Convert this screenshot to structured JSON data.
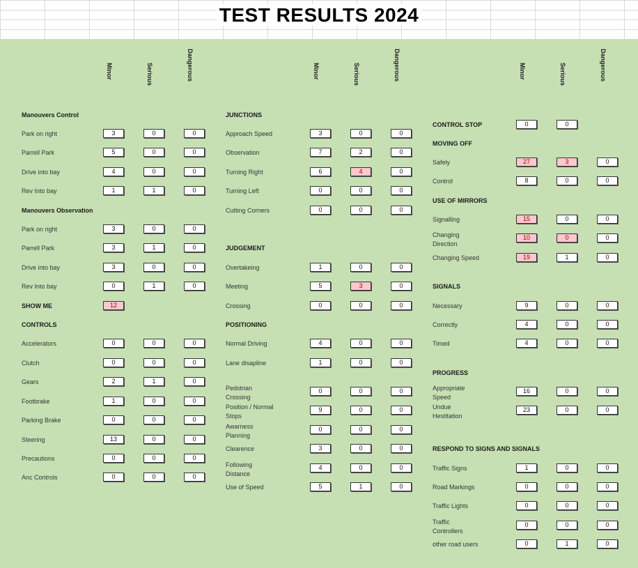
{
  "title": "TEST RESULTS 2024",
  "column_headers": [
    "Minor",
    "Serious",
    "Dangerous"
  ],
  "sections": [
    {
      "heading": "Manouvers Control",
      "rows": [
        {
          "label": "Park on right",
          "values": [
            "3",
            "0",
            "0"
          ]
        },
        {
          "label": "Parrell Park",
          "values": [
            "5",
            "0",
            "0"
          ]
        },
        {
          "label": "Drive into bay",
          "values": [
            "4",
            "0",
            "0"
          ]
        },
        {
          "label": "Rev Into bay",
          "values": [
            "1",
            "1",
            "0"
          ]
        }
      ]
    },
    {
      "heading": "Manouvers Observation",
      "rows": [
        {
          "label": "Park on right",
          "values": [
            "3",
            "0",
            "0"
          ]
        },
        {
          "label": "Parrell Park",
          "values": [
            "3",
            "1",
            "0"
          ]
        },
        {
          "label": "Drive into bay",
          "values": [
            "3",
            "0",
            "0"
          ]
        },
        {
          "label": "Rev Into bay",
          "values": [
            "0",
            "1",
            "0"
          ]
        }
      ]
    },
    {
      "heading": "SHOW ME",
      "rows": [
        {
          "label": "",
          "values": [
            "12"
          ]
        }
      ]
    },
    {
      "heading": "CONTROLS",
      "rows": [
        {
          "label": "Accelerators",
          "values": [
            "0",
            "0",
            "0"
          ]
        },
        {
          "label": "Clutch",
          "values": [
            "0",
            "0",
            "0"
          ]
        },
        {
          "label": "Gears",
          "values": [
            "2",
            "1",
            "0"
          ]
        },
        {
          "label": "Footbrake",
          "values": [
            "1",
            "0",
            "0"
          ]
        },
        {
          "label": "Parking Brake",
          "values": [
            "0",
            "0",
            "0"
          ]
        },
        {
          "label": "Steering",
          "values": [
            "13",
            "0",
            "0"
          ]
        },
        {
          "label": "Precautions",
          "values": [
            "0",
            "0",
            "0"
          ]
        },
        {
          "label": "Anc Controls",
          "values": [
            "0",
            "0",
            "0"
          ]
        }
      ]
    },
    {
      "heading": "JUNCTIONS",
      "rows": [
        {
          "label": "Approach Speed",
          "values": [
            "3",
            "0",
            "0"
          ]
        },
        {
          "label": "Observation",
          "values": [
            "7",
            "2",
            "0"
          ]
        },
        {
          "label": "Turning Right",
          "values": [
            "6",
            "4",
            "0"
          ]
        },
        {
          "label": "Turning Left",
          "values": [
            "0",
            "0",
            "0"
          ]
        },
        {
          "label": "Cutting Corners",
          "values": [
            "0",
            "0",
            "0"
          ]
        }
      ]
    },
    {
      "heading": "JUDGEMENT",
      "rows": [
        {
          "label": "Overtakeing",
          "values": [
            "1",
            "0",
            "0"
          ]
        },
        {
          "label": "Meeting",
          "values": [
            "5",
            "3",
            "0"
          ]
        },
        {
          "label": "Crossing",
          "values": [
            "0",
            "0",
            "0"
          ]
        }
      ]
    },
    {
      "heading": "POSITIONING",
      "rows": [
        {
          "label": "Normal Driving",
          "values": [
            "4",
            "0",
            "0"
          ]
        },
        {
          "label": "Lane disapline",
          "values": [
            "1",
            "0",
            "0"
          ]
        },
        {
          "label": "Pedstrian Crossing",
          "values": [
            "0",
            "0",
            "0"
          ]
        },
        {
          "label": "Position / Normal Stops",
          "values": [
            "9",
            "0",
            "0"
          ]
        },
        {
          "label": "Awarness Planning",
          "values": [
            "0",
            "0",
            "0"
          ]
        },
        {
          "label": "Clearence",
          "values": [
            "3",
            "0",
            "0"
          ]
        },
        {
          "label": "Following Distance",
          "values": [
            "4",
            "0",
            "0"
          ]
        },
        {
          "label": "Use of Speed",
          "values": [
            "5",
            "1",
            "0"
          ]
        }
      ]
    },
    {
      "heading": "CONTROL STOP",
      "rows": [
        {
          "label": "",
          "values": [
            "0",
            "0"
          ]
        }
      ]
    },
    {
      "heading": "MOVING OFF",
      "rows": [
        {
          "label": "Safely",
          "values": [
            "27",
            "3",
            "0"
          ]
        },
        {
          "label": "Control",
          "values": [
            "8",
            "0",
            "0"
          ]
        }
      ]
    },
    {
      "heading": "USE OF MIRRORS",
      "rows": [
        {
          "label": "Signalling",
          "values": [
            "15",
            "0",
            "0"
          ]
        },
        {
          "label": "Changing Direction",
          "values": [
            "10",
            "0",
            "0"
          ]
        },
        {
          "label": "Changing Speed",
          "values": [
            "19",
            "1",
            "0"
          ]
        }
      ]
    },
    {
      "heading": "SIGNALS",
      "rows": [
        {
          "label": "Necessary",
          "values": [
            "9",
            "0",
            "0"
          ]
        },
        {
          "label": "Correctly",
          "values": [
            "4",
            "0",
            "0"
          ]
        },
        {
          "label": "Timed",
          "values": [
            "4",
            "0",
            "0"
          ]
        }
      ]
    },
    {
      "heading": "PROGRESS",
      "rows": [
        {
          "label": "Appropriate Speed",
          "values": [
            "16",
            "0",
            "0"
          ]
        },
        {
          "label": "Undue Hestitation",
          "values": [
            "23",
            "0",
            "0"
          ]
        }
      ]
    },
    {
      "heading": "RESPOND TO SIGNS AND SIGNALS",
      "rows": [
        {
          "label": "Traffic Signs",
          "values": [
            "1",
            "0",
            "0"
          ]
        },
        {
          "label": "Road Markings",
          "values": [
            "0",
            "0",
            "0"
          ]
        },
        {
          "label": "Traffic Lights",
          "values": [
            "0",
            "0",
            "0"
          ]
        },
        {
          "label": "Traffic Controllers",
          "values": [
            "0",
            "0",
            "0"
          ]
        },
        {
          "label": "other road users",
          "values": [
            "0",
            "1",
            "0"
          ]
        }
      ]
    }
  ],
  "colors": {
    "sheet_bg": "#c6e0b4",
    "highlight_bg": "#ffc7ce",
    "highlight_text": "#9c0006"
  }
}
